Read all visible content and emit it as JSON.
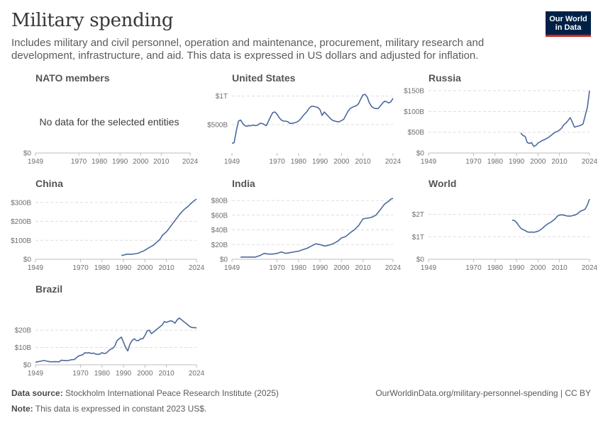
{
  "header": {
    "title": "Military spending",
    "subtitle": "Includes military and civil personnel, operation and maintenance, procurement, military research and development, infrastructure, and aid. This data is expressed in US dollars and adjusted for inflation.",
    "logo_line1": "Our World",
    "logo_line2": "in Data"
  },
  "footer": {
    "source_label": "Data source:",
    "source_text": "Stockholm International Peace Research Institute (2025)",
    "note_label": "Note:",
    "note_text": "This data is expressed in constant 2023 US$.",
    "url": "OurWorldinData.org/military-personnel-spending | CC BY"
  },
  "colors": {
    "line": "#4c6a9c",
    "grid": "#dddddd",
    "text": "#6e6e6e"
  },
  "chart_data": [
    {
      "type": "line",
      "title": "NATO members",
      "no_data_text": "No data for the selected entities",
      "x_ticks": [
        "1949",
        "1970",
        "1980",
        "1990",
        "2000",
        "2010",
        "2024"
      ],
      "y_ticks": [
        {
          "v": 0,
          "label": "$0"
        }
      ],
      "ylim": [
        0,
        1
      ],
      "xlim": [
        1949,
        2024
      ],
      "x": [],
      "y": []
    },
    {
      "type": "line",
      "title": "United States",
      "x_ticks": [
        "1949",
        "1970",
        "1980",
        "1990",
        "2000",
        "2010",
        "2024"
      ],
      "y_ticks": [
        {
          "v": 500,
          "label": "$500B"
        },
        {
          "v": 1000,
          "label": "$1T"
        }
      ],
      "ylim": [
        0,
        1070
      ],
      "xlim": [
        1949,
        2024
      ],
      "x": [
        1949,
        1950,
        1951,
        1952,
        1953,
        1954,
        1955,
        1956,
        1957,
        1958,
        1959,
        1960,
        1961,
        1962,
        1963,
        1964,
        1965,
        1966,
        1967,
        1968,
        1969,
        1970,
        1971,
        1972,
        1973,
        1974,
        1975,
        1976,
        1977,
        1978,
        1979,
        1980,
        1981,
        1982,
        1983,
        1984,
        1985,
        1986,
        1987,
        1988,
        1989,
        1990,
        1991,
        1992,
        1993,
        1994,
        1995,
        1996,
        1997,
        1998,
        1999,
        2000,
        2001,
        2002,
        2003,
        2004,
        2005,
        2006,
        2007,
        2008,
        2009,
        2010,
        2011,
        2012,
        2013,
        2014,
        2015,
        2016,
        2017,
        2018,
        2019,
        2020,
        2021,
        2022,
        2023,
        2024
      ],
      "y": [
        170,
        180,
        390,
        560,
        580,
        520,
        480,
        470,
        480,
        480,
        490,
        480,
        490,
        520,
        520,
        500,
        480,
        560,
        640,
        710,
        720,
        680,
        620,
        580,
        560,
        560,
        550,
        520,
        520,
        530,
        540,
        560,
        600,
        650,
        690,
        730,
        790,
        820,
        820,
        810,
        800,
        760,
        660,
        720,
        680,
        640,
        600,
        570,
        560,
        550,
        550,
        570,
        590,
        660,
        730,
        780,
        800,
        820,
        830,
        870,
        950,
        1020,
        1030,
        980,
        880,
        820,
        790,
        780,
        780,
        820,
        870,
        910,
        900,
        880,
        900,
        960
      ]
    },
    {
      "type": "line",
      "title": "Russia",
      "x_ticks": [
        "1949",
        "1970",
        "1980",
        "1990",
        "2000",
        "2010",
        "2024"
      ],
      "y_ticks": [
        {
          "v": 0,
          "label": "$0"
        },
        {
          "v": 50,
          "label": "$50B"
        },
        {
          "v": 100,
          "label": "$100B"
        },
        {
          "v": 150,
          "label": "$150B"
        }
      ],
      "ylim": [
        0,
        150
      ],
      "xlim": [
        1949,
        2024
      ],
      "x": [
        1992,
        1993,
        1994,
        1995,
        1996,
        1997,
        1998,
        1999,
        2000,
        2001,
        2002,
        2003,
        2004,
        2005,
        2006,
        2007,
        2008,
        2009,
        2010,
        2011,
        2012,
        2013,
        2014,
        2015,
        2016,
        2017,
        2018,
        2019,
        2020,
        2021,
        2022,
        2023,
        2024
      ],
      "y": [
        48,
        42,
        40,
        25,
        23,
        25,
        16,
        18,
        24,
        27,
        30,
        32,
        35,
        38,
        42,
        46,
        50,
        52,
        55,
        60,
        68,
        72,
        78,
        85,
        74,
        62,
        64,
        65,
        67,
        70,
        90,
        110,
        150
      ]
    },
    {
      "type": "line",
      "title": "China",
      "x_ticks": [
        "1949",
        "1970",
        "1980",
        "1990",
        "2000",
        "2010",
        "2024"
      ],
      "y_ticks": [
        {
          "v": 0,
          "label": "$0"
        },
        {
          "v": 100,
          "label": "$100B"
        },
        {
          "v": 200,
          "label": "$200B"
        },
        {
          "v": 300,
          "label": "$300B"
        }
      ],
      "ylim": [
        0,
        318
      ],
      "xlim": [
        1949,
        2024
      ],
      "x": [
        1989,
        1990,
        1991,
        1992,
        1993,
        1994,
        1995,
        1996,
        1997,
        1998,
        1999,
        2000,
        2001,
        2002,
        2003,
        2004,
        2005,
        2006,
        2007,
        2008,
        2009,
        2010,
        2011,
        2012,
        2013,
        2014,
        2015,
        2016,
        2017,
        2018,
        2019,
        2020,
        2021,
        2022,
        2023,
        2024
      ],
      "y": [
        20,
        22,
        25,
        27,
        26,
        27,
        28,
        30,
        32,
        38,
        42,
        48,
        55,
        62,
        68,
        75,
        85,
        95,
        105,
        125,
        135,
        145,
        160,
        175,
        190,
        205,
        220,
        235,
        248,
        260,
        270,
        278,
        290,
        300,
        310,
        318
      ]
    },
    {
      "type": "line",
      "title": "India",
      "x_ticks": [
        "1949",
        "1970",
        "1980",
        "1990",
        "2000",
        "2010",
        "2024"
      ],
      "y_ticks": [
        {
          "v": 0,
          "label": "$0"
        },
        {
          "v": 20,
          "label": "$20B"
        },
        {
          "v": 40,
          "label": "$40B"
        },
        {
          "v": 60,
          "label": "$60B"
        },
        {
          "v": 80,
          "label": "$80B"
        }
      ],
      "ylim": [
        0,
        82
      ],
      "xlim": [
        1949,
        2024
      ],
      "x": [
        1953,
        1955,
        1957,
        1960,
        1962,
        1964,
        1966,
        1968,
        1970,
        1972,
        1974,
        1976,
        1978,
        1980,
        1982,
        1984,
        1986,
        1988,
        1990,
        1992,
        1994,
        1996,
        1998,
        2000,
        2002,
        2004,
        2006,
        2008,
        2010,
        2012,
        2014,
        2016,
        2018,
        2020,
        2022,
        2023,
        2024
      ],
      "y": [
        3,
        3,
        3,
        3,
        5,
        8,
        7,
        7,
        8,
        10,
        8,
        9,
        10,
        11,
        13,
        15,
        18,
        21,
        20,
        18,
        19,
        21,
        24,
        29,
        31,
        36,
        40,
        46,
        55,
        56,
        57,
        60,
        67,
        75,
        79,
        82,
        83
      ]
    },
    {
      "type": "line",
      "title": "World",
      "x_ticks": [
        "1949",
        "1970",
        "1980",
        "1990",
        "2000",
        "2010",
        "2024"
      ],
      "y_ticks": [
        {
          "v": 0,
          "label": "$0"
        },
        {
          "v": 1000,
          "label": "$1T"
        },
        {
          "v": 2000,
          "label": "$2T"
        }
      ],
      "ylim": [
        0,
        2680
      ],
      "xlim": [
        1949,
        2024
      ],
      "x": [
        1988,
        1989,
        1990,
        1991,
        1992,
        1993,
        1994,
        1995,
        1996,
        1997,
        1998,
        1999,
        2000,
        2001,
        2002,
        2003,
        2004,
        2005,
        2006,
        2007,
        2008,
        2009,
        2010,
        2011,
        2012,
        2013,
        2014,
        2015,
        2016,
        2017,
        2018,
        2019,
        2020,
        2021,
        2022,
        2023,
        2024
      ],
      "y": [
        1740,
        1720,
        1640,
        1500,
        1380,
        1320,
        1280,
        1220,
        1200,
        1210,
        1200,
        1220,
        1250,
        1300,
        1370,
        1460,
        1540,
        1600,
        1650,
        1720,
        1800,
        1920,
        1960,
        1980,
        1960,
        1940,
        1920,
        1920,
        1940,
        1960,
        2000,
        2080,
        2150,
        2180,
        2240,
        2420,
        2680
      ]
    },
    {
      "type": "line",
      "title": "Brazil",
      "x_ticks": [
        "1949",
        "1970",
        "1980",
        "1990",
        "2000",
        "2010",
        "2024"
      ],
      "y_ticks": [
        {
          "v": 0,
          "label": "$0"
        },
        {
          "v": 10,
          "label": "$10B"
        },
        {
          "v": 20,
          "label": "$20B"
        }
      ],
      "ylim": [
        0,
        27
      ],
      "xlim": [
        1949,
        2024
      ],
      "x": [
        1949,
        1951,
        1953,
        1954,
        1956,
        1958,
        1960,
        1961,
        1963,
        1964,
        1966,
        1967,
        1969,
        1970,
        1971,
        1972,
        1973,
        1974,
        1975,
        1976,
        1977,
        1978,
        1979,
        1980,
        1981,
        1982,
        1983,
        1984,
        1985,
        1986,
        1987,
        1988,
        1989,
        1990,
        1991,
        1992,
        1993,
        1994,
        1995,
        1996,
        1997,
        1998,
        1999,
        2000,
        2001,
        2002,
        2003,
        2004,
        2005,
        2006,
        2007,
        2008,
        2009,
        2010,
        2011,
        2012,
        2013,
        2014,
        2015,
        2016,
        2017,
        2018,
        2019,
        2020,
        2021,
        2022,
        2023,
        2024
      ],
      "y": [
        1.5,
        2,
        2.5,
        2.2,
        1.7,
        1.8,
        1.7,
        2.6,
        2.4,
        2.4,
        3,
        3,
        5,
        5.5,
        5.8,
        7,
        6.8,
        7,
        6.5,
        6.8,
        6.2,
        6,
        6.2,
        7,
        6.5,
        6.8,
        8,
        9,
        9.5,
        11,
        14,
        15,
        16,
        13,
        10,
        8,
        12,
        14,
        15,
        14,
        14,
        15,
        15,
        17,
        19.5,
        20,
        18,
        19,
        20,
        21,
        22,
        23,
        25,
        24.5,
        25,
        25.5,
        25,
        24,
        26,
        27,
        26,
        25,
        24,
        23,
        22,
        21.5,
        21.5,
        21.3
      ]
    }
  ]
}
